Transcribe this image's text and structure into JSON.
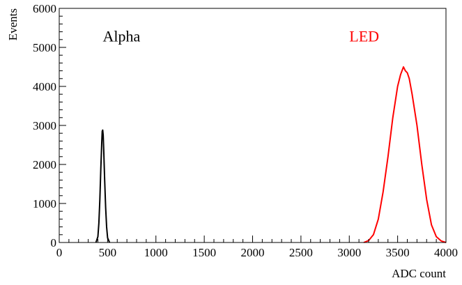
{
  "chart_data": {
    "type": "line",
    "title": "",
    "xlabel": "ADC count",
    "ylabel": "Events",
    "xlim": [
      0,
      4000
    ],
    "ylim": [
      0,
      6000
    ],
    "x_ticks": [
      0,
      500,
      1000,
      1500,
      2000,
      2500,
      3000,
      3500,
      4000
    ],
    "y_ticks": [
      0,
      1000,
      2000,
      3000,
      4000,
      5000,
      6000
    ],
    "grid": false,
    "series": [
      {
        "name": "Alpha",
        "color": "#000000",
        "x": [
          380,
          400,
          410,
          420,
          430,
          440,
          445,
          450,
          455,
          460,
          470,
          480,
          490,
          500,
          520
        ],
        "y": [
          0,
          150,
          500,
          1100,
          1900,
          2600,
          2850,
          2880,
          2750,
          2400,
          1600,
          900,
          400,
          120,
          0
        ]
      },
      {
        "name": "LED",
        "color": "#ff0000",
        "x": [
          3150,
          3200,
          3250,
          3300,
          3350,
          3400,
          3450,
          3500,
          3530,
          3560,
          3580,
          3600,
          3620,
          3650,
          3700,
          3750,
          3800,
          3850,
          3900,
          3950,
          4000
        ],
        "y": [
          0,
          50,
          200,
          600,
          1300,
          2200,
          3200,
          4000,
          4300,
          4500,
          4400,
          4350,
          4200,
          3800,
          3000,
          2000,
          1100,
          450,
          150,
          40,
          0
        ]
      }
    ],
    "annotations": [
      {
        "text": "Alpha",
        "color": "#000000"
      },
      {
        "text": "LED",
        "color": "#ff0000"
      }
    ]
  }
}
